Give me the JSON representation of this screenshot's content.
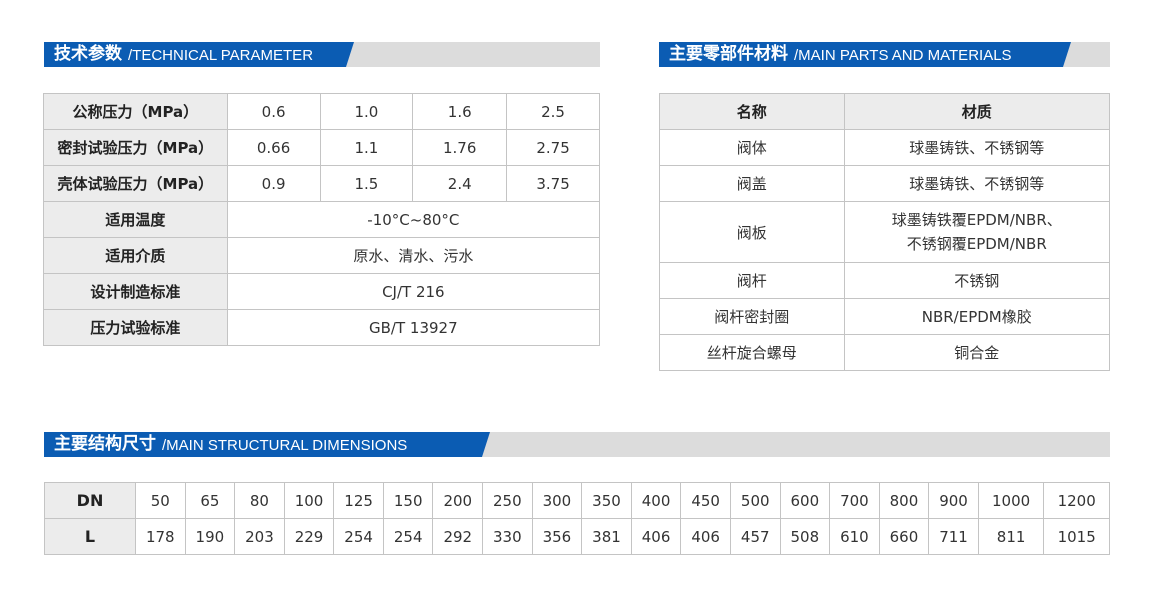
{
  "technical": {
    "title_cn": "技术参数",
    "title_en": "/TECHNICAL PARAMETER",
    "pressure_rows": [
      {
        "label": "公称压力（MPa）",
        "values": [
          "0.6",
          "1.0",
          "1.6",
          "2.5"
        ]
      },
      {
        "label": "密封试验压力（MPa）",
        "values": [
          "0.66",
          "1.1",
          "1.76",
          "2.75"
        ]
      },
      {
        "label": "壳体试验压力（MPa）",
        "values": [
          "0.9",
          "1.5",
          "2.4",
          "3.75"
        ]
      }
    ],
    "rows": [
      {
        "label": "适用温度",
        "value": "-10°C~80°C"
      },
      {
        "label": "适用介质",
        "value": "原水、清水、污水"
      },
      {
        "label": "设计制造标准",
        "value": "CJ/T 216"
      },
      {
        "label": "压力试验标准",
        "value": "GB/T 13927"
      }
    ]
  },
  "materials": {
    "title_cn": "主要零部件材料",
    "title_en": "/MAIN PARTS AND MATERIALS",
    "headers": [
      "名称",
      "材质"
    ],
    "rows": [
      {
        "name": "阀体",
        "material": "球墨铸铁、不锈钢等"
      },
      {
        "name": "阀盖",
        "material": "球墨铸铁、不锈钢等"
      },
      {
        "name": "阀板",
        "material": "球墨铸铁覆EPDM/NBR、",
        "material2": "不锈钢覆EPDM/NBR"
      },
      {
        "name": "阀杆",
        "material": "不锈钢"
      },
      {
        "name": "阀杆密封圈",
        "material": "NBR/EPDM橡胶"
      },
      {
        "name": "丝杆旋合螺母",
        "material": "铜合金"
      }
    ]
  },
  "dimensions": {
    "title_cn": "主要结构尺寸",
    "title_en": "/MAIN STRUCTURAL DIMENSIONS",
    "dn_label": "DN",
    "l_label": "L",
    "dn": [
      "50",
      "65",
      "80",
      "100",
      "125",
      "150",
      "200",
      "250",
      "300",
      "350",
      "400",
      "450",
      "500",
      "600",
      "700",
      "800",
      "900",
      "1000",
      "1200"
    ],
    "l": [
      "178",
      "190",
      "203",
      "229",
      "254",
      "254",
      "292",
      "330",
      "356",
      "381",
      "406",
      "406",
      "457",
      "508",
      "610",
      "660",
      "711",
      "811",
      "1015"
    ]
  },
  "colors": {
    "accent": "#0b5cb3",
    "bar_gray": "#dcdcdc",
    "header_gray": "#ececec"
  }
}
